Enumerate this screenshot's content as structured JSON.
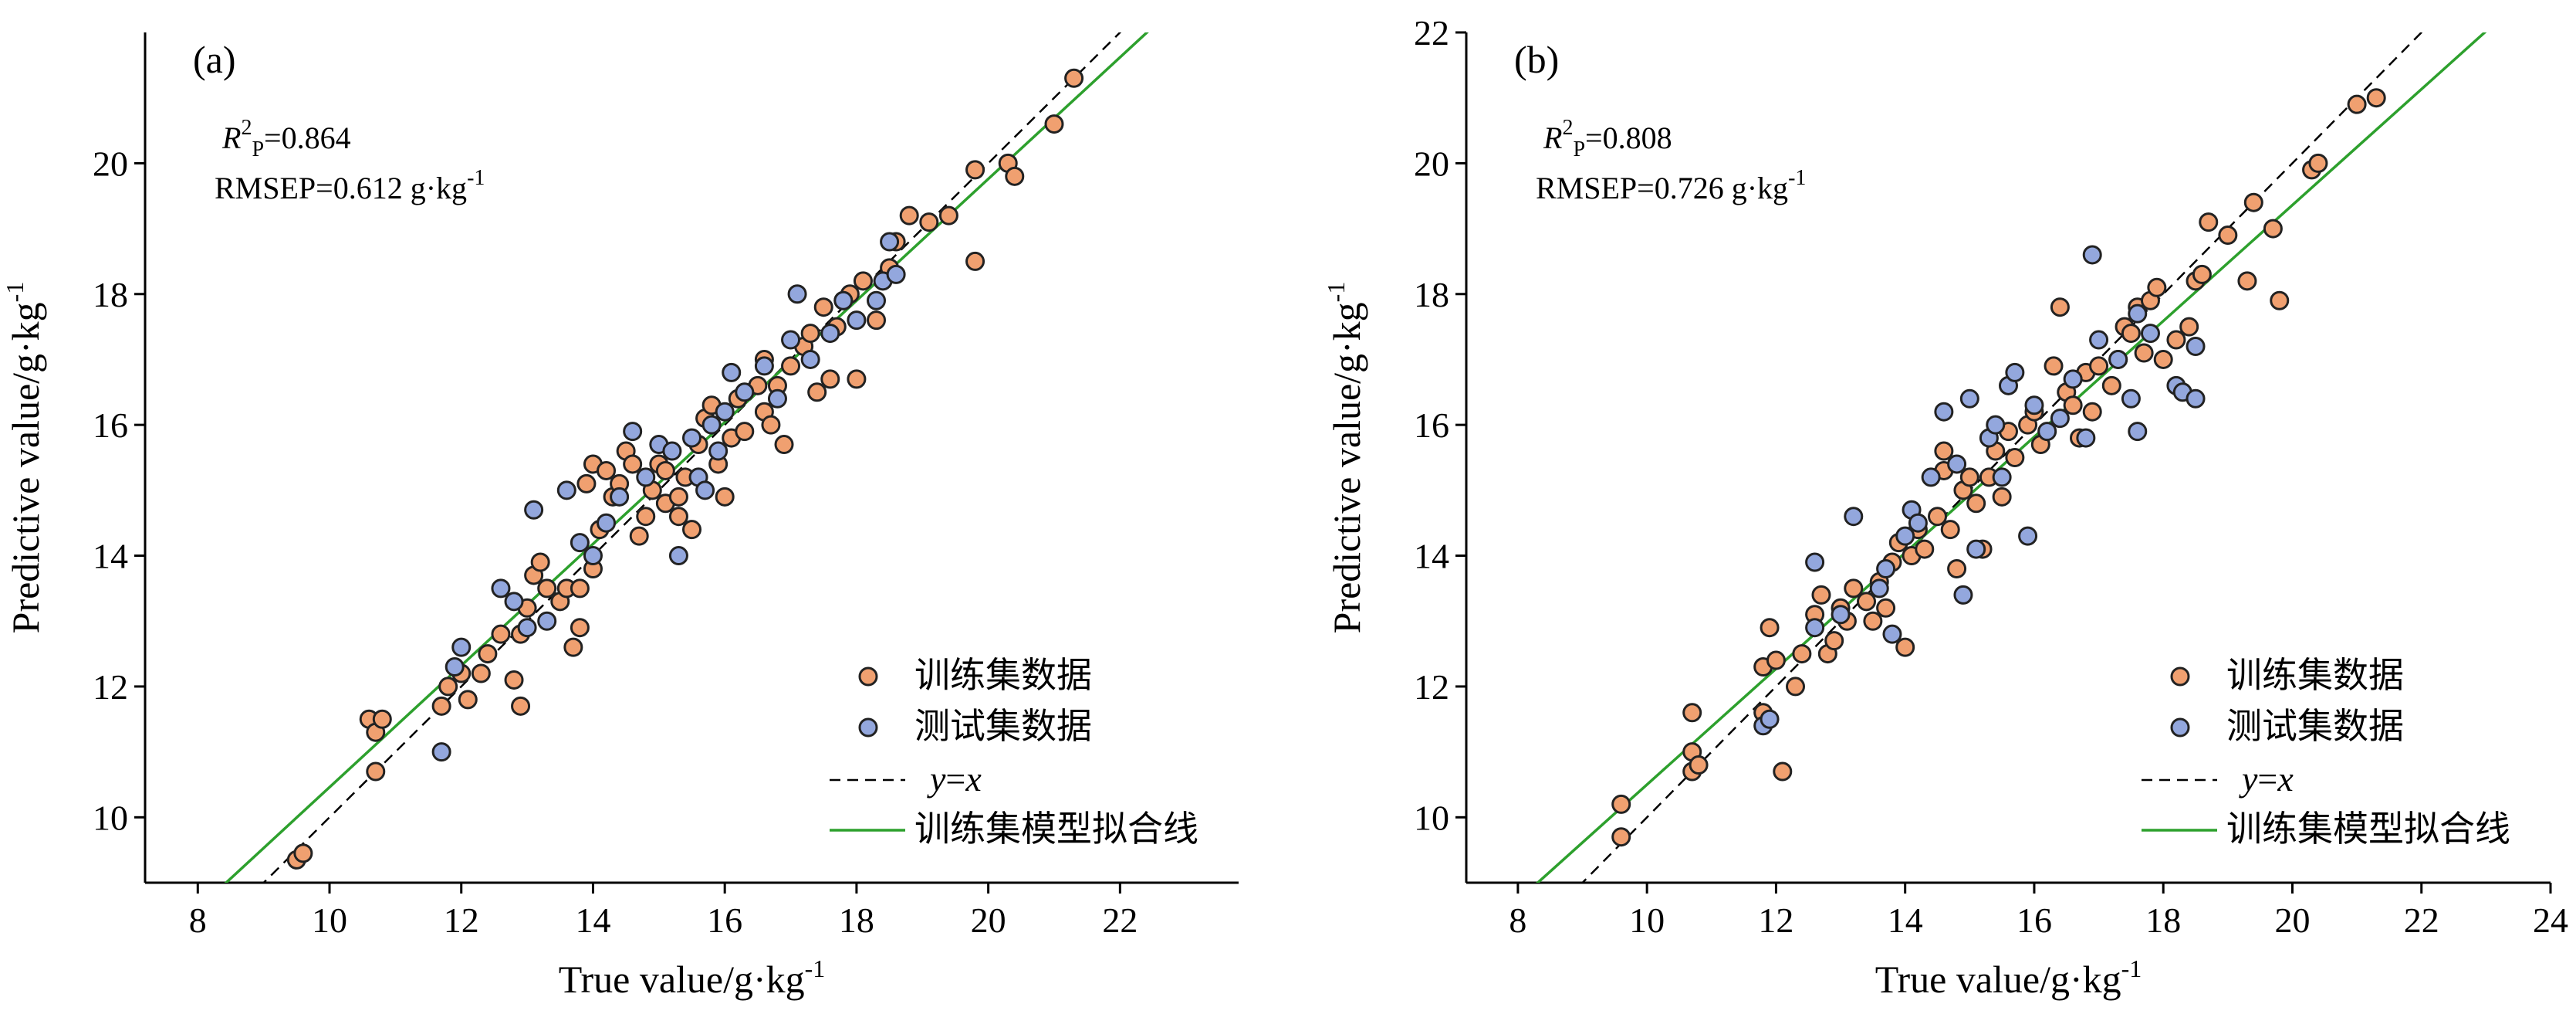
{
  "colors": {
    "train": "#F0A070",
    "test": "#93A7DD",
    "fit": "#2DA02D",
    "identity": "#000000",
    "edge": "#222222"
  },
  "chart_data": [
    {
      "type": "scatter",
      "panel_label": "(a)",
      "xlabel": "True value/g·kg",
      "xlabel_sup": "-1",
      "ylabel": "Predictive value/g·kg",
      "ylabel_sup": "-1",
      "xlim": [
        7.2,
        23.8
      ],
      "ylim": [
        9.0,
        22.0
      ],
      "xticks": [
        8,
        10,
        12,
        14,
        16,
        18,
        20,
        22
      ],
      "yticks": [
        10,
        12,
        14,
        16,
        18,
        20
      ],
      "stats": {
        "r2_symbol": "R",
        "r2_sup": "2",
        "r2_sub": "P",
        "r2_value": "=0.864",
        "rmsep_text": "RMSEP=0.612 g·kg",
        "rmsep_sup": "-1"
      },
      "legend": {
        "position": "bottom-right",
        "train": "训练集数据",
        "test": "测试集数据",
        "identity_y": "y",
        "identity_eq": "=",
        "identity_x": "x",
        "fit": "训练集模型拟合线"
      },
      "fit_line": {
        "slope": 0.93,
        "intercept": 1.16
      },
      "series": [
        {
          "name": "训练集数据",
          "points": [
            [
              9.5,
              9.35
            ],
            [
              9.6,
              9.45
            ],
            [
              10.6,
              11.5
            ],
            [
              10.7,
              11.3
            ],
            [
              10.8,
              11.5
            ],
            [
              10.7,
              10.7
            ],
            [
              11.7,
              11.7
            ],
            [
              11.8,
              12.0
            ],
            [
              12.0,
              12.2
            ],
            [
              12.1,
              11.8
            ],
            [
              12.3,
              12.2
            ],
            [
              12.4,
              12.5
            ],
            [
              12.6,
              12.8
            ],
            [
              12.8,
              12.1
            ],
            [
              12.9,
              11.7
            ],
            [
              12.9,
              12.8
            ],
            [
              13.0,
              13.2
            ],
            [
              13.1,
              13.7
            ],
            [
              13.2,
              13.9
            ],
            [
              13.3,
              13.5
            ],
            [
              13.5,
              13.3
            ],
            [
              13.6,
              13.5
            ],
            [
              13.7,
              12.6
            ],
            [
              13.8,
              12.9
            ],
            [
              13.8,
              13.5
            ],
            [
              14.0,
              13.8
            ],
            [
              13.9,
              15.1
            ],
            [
              14.0,
              15.4
            ],
            [
              14.1,
              14.4
            ],
            [
              14.2,
              15.3
            ],
            [
              14.3,
              14.9
            ],
            [
              14.4,
              15.1
            ],
            [
              14.5,
              15.6
            ],
            [
              14.6,
              15.4
            ],
            [
              14.7,
              14.3
            ],
            [
              14.8,
              14.6
            ],
            [
              14.9,
              15.0
            ],
            [
              15.0,
              15.4
            ],
            [
              15.1,
              15.3
            ],
            [
              15.1,
              14.8
            ],
            [
              15.3,
              14.9
            ],
            [
              15.3,
              14.6
            ],
            [
              15.4,
              15.2
            ],
            [
              15.5,
              14.4
            ],
            [
              15.6,
              15.7
            ],
            [
              15.7,
              16.1
            ],
            [
              15.8,
              16.3
            ],
            [
              15.9,
              15.4
            ],
            [
              16.0,
              14.9
            ],
            [
              16.1,
              15.8
            ],
            [
              16.2,
              16.4
            ],
            [
              16.3,
              15.9
            ],
            [
              16.5,
              16.6
            ],
            [
              16.6,
              16.2
            ],
            [
              16.6,
              17.0
            ],
            [
              16.7,
              16.0
            ],
            [
              16.8,
              16.6
            ],
            [
              16.9,
              15.7
            ],
            [
              17.0,
              16.9
            ],
            [
              17.2,
              17.2
            ],
            [
              17.3,
              17.4
            ],
            [
              17.4,
              16.5
            ],
            [
              17.5,
              17.8
            ],
            [
              17.6,
              16.7
            ],
            [
              17.7,
              17.5
            ],
            [
              17.8,
              17.9
            ],
            [
              17.9,
              18.0
            ],
            [
              18.0,
              16.7
            ],
            [
              18.1,
              18.2
            ],
            [
              18.3,
              17.6
            ],
            [
              18.5,
              18.4
            ],
            [
              18.6,
              18.8
            ],
            [
              18.8,
              19.2
            ],
            [
              19.1,
              19.1
            ],
            [
              19.4,
              19.2
            ],
            [
              19.8,
              19.9
            ],
            [
              19.8,
              18.5
            ],
            [
              20.3,
              20.0
            ],
            [
              20.4,
              19.8
            ],
            [
              21.0,
              20.6
            ],
            [
              21.3,
              21.3
            ]
          ]
        },
        {
          "name": "测试集数据",
          "points": [
            [
              11.7,
              11.0
            ],
            [
              11.9,
              12.3
            ],
            [
              12.0,
              12.6
            ],
            [
              12.6,
              13.5
            ],
            [
              12.8,
              13.3
            ],
            [
              13.0,
              12.9
            ],
            [
              13.1,
              14.7
            ],
            [
              13.3,
              13.0
            ],
            [
              13.6,
              15.0
            ],
            [
              13.8,
              14.2
            ],
            [
              14.0,
              14.0
            ],
            [
              14.2,
              14.5
            ],
            [
              14.4,
              14.9
            ],
            [
              14.6,
              15.9
            ],
            [
              14.8,
              15.2
            ],
            [
              15.0,
              15.7
            ],
            [
              15.2,
              15.6
            ],
            [
              15.3,
              14.0
            ],
            [
              15.5,
              15.8
            ],
            [
              15.6,
              15.2
            ],
            [
              15.7,
              15.0
            ],
            [
              15.8,
              16.0
            ],
            [
              15.9,
              15.6
            ],
            [
              16.0,
              16.2
            ],
            [
              16.1,
              16.8
            ],
            [
              16.3,
              16.5
            ],
            [
              16.6,
              16.9
            ],
            [
              16.8,
              16.4
            ],
            [
              17.0,
              17.3
            ],
            [
              17.1,
              18.0
            ],
            [
              17.3,
              17.0
            ],
            [
              17.6,
              17.4
            ],
            [
              17.8,
              17.9
            ],
            [
              18.0,
              17.6
            ],
            [
              18.3,
              17.9
            ],
            [
              18.4,
              18.2
            ],
            [
              18.5,
              18.8
            ],
            [
              18.6,
              18.3
            ]
          ]
        }
      ]
    },
    {
      "type": "scatter",
      "panel_label": "(b)",
      "xlabel": "True value/g·kg",
      "xlabel_sup": "-1",
      "ylabel": "Predictive value/g·kg",
      "ylabel_sup": "-1",
      "xlim": [
        7.2,
        24.0
      ],
      "ylim": [
        9.0,
        22.0
      ],
      "xticks": [
        8,
        10,
        12,
        14,
        16,
        18,
        20,
        22,
        24
      ],
      "yticks": [
        10,
        12,
        14,
        16,
        18,
        20,
        22
      ],
      "stats": {
        "r2_symbol": "R",
        "r2_sup": "2",
        "r2_sub": "P",
        "r2_value": "=0.808",
        "rmsep_text": "RMSEP=0.726 g·kg",
        "rmsep_sup": "-1"
      },
      "legend": {
        "position": "bottom-right",
        "train": "训练集数据",
        "test": "测试集数据",
        "identity_y": "y",
        "identity_eq": "=",
        "identity_x": "x",
        "fit": "训练集模型拟合线"
      },
      "fit_line": {
        "slope": 0.886,
        "intercept": 1.64
      },
      "series": [
        {
          "name": "训练集数据",
          "points": [
            [
              9.6,
              9.7
            ],
            [
              9.6,
              10.2
            ],
            [
              10.7,
              10.7
            ],
            [
              10.7,
              11.0
            ],
            [
              10.7,
              11.6
            ],
            [
              10.8,
              10.8
            ],
            [
              11.8,
              11.6
            ],
            [
              11.8,
              12.3
            ],
            [
              11.9,
              12.9
            ],
            [
              12.0,
              12.4
            ],
            [
              12.1,
              10.7
            ],
            [
              12.3,
              12.0
            ],
            [
              12.4,
              12.5
            ],
            [
              12.6,
              13.1
            ],
            [
              12.7,
              13.4
            ],
            [
              12.8,
              12.5
            ],
            [
              12.9,
              12.7
            ],
            [
              13.0,
              13.2
            ],
            [
              13.1,
              13.0
            ],
            [
              13.2,
              13.5
            ],
            [
              13.4,
              13.3
            ],
            [
              13.5,
              13.0
            ],
            [
              13.6,
              13.6
            ],
            [
              13.7,
              13.2
            ],
            [
              13.8,
              13.9
            ],
            [
              13.9,
              14.2
            ],
            [
              14.0,
              12.6
            ],
            [
              14.1,
              14.0
            ],
            [
              14.2,
              14.4
            ],
            [
              14.3,
              14.1
            ],
            [
              14.5,
              14.6
            ],
            [
              14.6,
              15.3
            ],
            [
              14.6,
              15.6
            ],
            [
              14.7,
              14.4
            ],
            [
              14.8,
              13.8
            ],
            [
              14.9,
              15.0
            ],
            [
              15.0,
              15.2
            ],
            [
              15.1,
              14.8
            ],
            [
              15.2,
              14.1
            ],
            [
              15.3,
              15.2
            ],
            [
              15.4,
              15.6
            ],
            [
              15.5,
              14.9
            ],
            [
              15.6,
              15.9
            ],
            [
              15.7,
              15.5
            ],
            [
              15.9,
              16.0
            ],
            [
              16.0,
              16.2
            ],
            [
              16.1,
              15.7
            ],
            [
              16.3,
              16.9
            ],
            [
              16.4,
              17.8
            ],
            [
              16.5,
              16.5
            ],
            [
              16.6,
              16.3
            ],
            [
              16.7,
              15.8
            ],
            [
              16.8,
              16.8
            ],
            [
              16.9,
              16.2
            ],
            [
              17.0,
              16.9
            ],
            [
              17.2,
              16.6
            ],
            [
              17.3,
              17.0
            ],
            [
              17.4,
              17.5
            ],
            [
              17.5,
              17.4
            ],
            [
              17.6,
              17.8
            ],
            [
              17.7,
              17.1
            ],
            [
              17.8,
              17.9
            ],
            [
              17.9,
              18.1
            ],
            [
              18.0,
              17.0
            ],
            [
              18.2,
              17.3
            ],
            [
              18.4,
              17.5
            ],
            [
              18.5,
              18.2
            ],
            [
              18.6,
              18.3
            ],
            [
              18.7,
              19.1
            ],
            [
              19.0,
              18.9
            ],
            [
              19.3,
              18.2
            ],
            [
              19.4,
              19.4
            ],
            [
              19.7,
              19.0
            ],
            [
              19.8,
              17.9
            ],
            [
              20.3,
              19.9
            ],
            [
              20.4,
              20.0
            ],
            [
              21.0,
              20.9
            ],
            [
              21.3,
              21.0
            ]
          ]
        },
        {
          "name": "测试集数据",
          "points": [
            [
              11.8,
              11.4
            ],
            [
              11.9,
              11.5
            ],
            [
              12.6,
              12.9
            ],
            [
              12.6,
              13.9
            ],
            [
              13.0,
              13.1
            ],
            [
              13.2,
              14.6
            ],
            [
              13.6,
              13.5
            ],
            [
              13.7,
              13.8
            ],
            [
              13.8,
              12.8
            ],
            [
              14.0,
              14.3
            ],
            [
              14.1,
              14.7
            ],
            [
              14.2,
              14.5
            ],
            [
              14.4,
              15.2
            ],
            [
              14.6,
              16.2
            ],
            [
              14.8,
              15.4
            ],
            [
              14.9,
              13.4
            ],
            [
              15.0,
              16.4
            ],
            [
              15.1,
              14.1
            ],
            [
              15.3,
              15.8
            ],
            [
              15.4,
              16.0
            ],
            [
              15.5,
              15.2
            ],
            [
              15.6,
              16.6
            ],
            [
              15.7,
              16.8
            ],
            [
              15.9,
              14.3
            ],
            [
              16.0,
              16.3
            ],
            [
              16.2,
              15.9
            ],
            [
              16.4,
              16.1
            ],
            [
              16.6,
              16.7
            ],
            [
              16.8,
              15.8
            ],
            [
              16.9,
              18.6
            ],
            [
              17.0,
              17.3
            ],
            [
              17.3,
              17.0
            ],
            [
              17.5,
              16.4
            ],
            [
              17.6,
              17.7
            ],
            [
              17.6,
              15.9
            ],
            [
              17.8,
              17.4
            ],
            [
              18.2,
              16.6
            ],
            [
              18.3,
              16.5
            ],
            [
              18.5,
              17.2
            ],
            [
              18.5,
              16.4
            ]
          ]
        }
      ]
    }
  ]
}
